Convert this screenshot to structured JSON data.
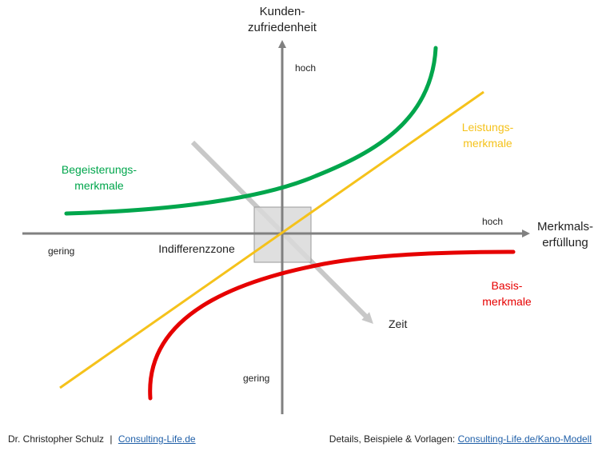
{
  "axes": {
    "y_label_line1": "Kunden-",
    "y_label_line2": "zufriedenheit",
    "x_label_line1": "Merkmals-",
    "x_label_line2": "erfüllung",
    "y_high": "hoch",
    "y_low": "gering",
    "x_high": "hoch",
    "x_low": "gering"
  },
  "labels": {
    "excitement_line1": "Begeisterungs-",
    "excitement_line2": "merkmale",
    "performance_line1": "Leistungs-",
    "performance_line2": "merkmale",
    "basic_line1": "Basis-",
    "basic_line2": "merkmale",
    "indifference": "Indifferenzzone",
    "time": "Zeit"
  },
  "colors": {
    "excitement": "#00a64c",
    "performance": "#f5c21b",
    "basic": "#e60000",
    "axis": "#808080",
    "time_arrow": "#c8c8c8",
    "zone_fill": "#d9d9d9",
    "zone_stroke": "#9a9a9a"
  },
  "footer": {
    "author": "Dr. Christopher Schulz",
    "separator": "|",
    "author_link": "Consulting-Life.de",
    "details_text": "Details, Beispiele & Vorlagen:",
    "details_link": "Consulting-Life.de/Kano-Modell"
  }
}
